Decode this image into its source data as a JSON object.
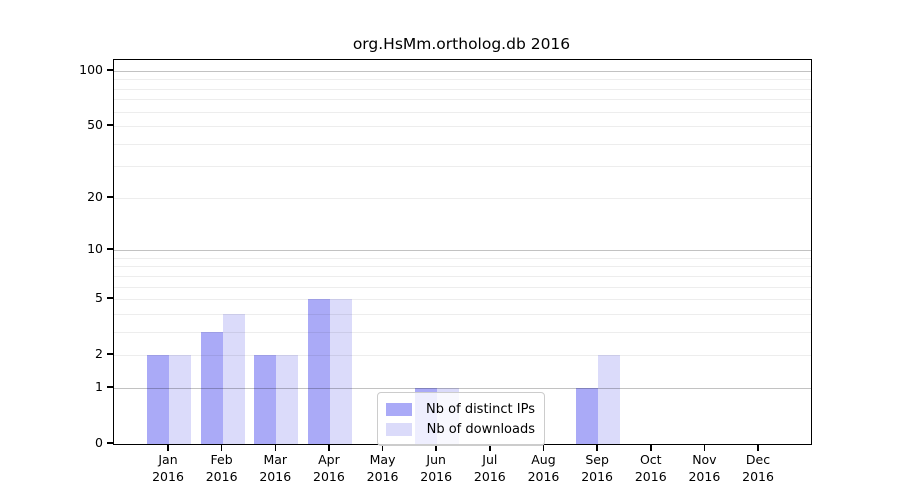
{
  "figure": {
    "background_color": "#ffffff",
    "axis_color": "#000000",
    "grid_major_color": "rgba(0,0,0,0.24)",
    "grid_minor_color": "rgba(0,0,0,0.07)"
  },
  "chart_data": {
    "type": "bar",
    "title": "org.HsMm.ortholog.db 2016",
    "xlabel": "",
    "ylabel": "",
    "yscale": "log1p",
    "ylim": [
      0,
      114.6
    ],
    "grid": "on",
    "legend_position": "inside lower-center",
    "year": "2016",
    "categories": [
      "Jan",
      "Feb",
      "Mar",
      "Apr",
      "May",
      "Jun",
      "Jul",
      "Aug",
      "Sep",
      "Oct",
      "Nov",
      "Dec"
    ],
    "x_tick_labels": [
      [
        "Jan",
        "2016"
      ],
      [
        "Feb",
        "2016"
      ],
      [
        "Mar",
        "2016"
      ],
      [
        "Apr",
        "2016"
      ],
      [
        "May",
        "2016"
      ],
      [
        "Jun",
        "2016"
      ],
      [
        "Jul",
        "2016"
      ],
      [
        "Aug",
        "2016"
      ],
      [
        "Sep",
        "2016"
      ],
      [
        "Oct",
        "2016"
      ],
      [
        "Nov",
        "2016"
      ],
      [
        "Dec",
        "2016"
      ]
    ],
    "y_tick_labels": [
      0,
      1,
      2,
      5,
      10,
      20,
      50,
      100
    ],
    "y_major_gridlines": [
      1,
      10,
      100
    ],
    "y_minor_gridlines": [
      2,
      3,
      4,
      5,
      6,
      7,
      8,
      9,
      20,
      30,
      40,
      50,
      60,
      70,
      80,
      90
    ],
    "series": [
      {
        "name": "Nb of distinct IPs",
        "color": "#aaaaf7",
        "values": [
          2,
          3,
          2,
          5,
          0,
          1,
          0,
          0,
          1,
          0,
          0,
          0
        ]
      },
      {
        "name": "Nb of downloads",
        "color": "#dbdbfa",
        "values": [
          2,
          4,
          2,
          5,
          0,
          1,
          0,
          0,
          2,
          0,
          0,
          0
        ]
      }
    ]
  }
}
